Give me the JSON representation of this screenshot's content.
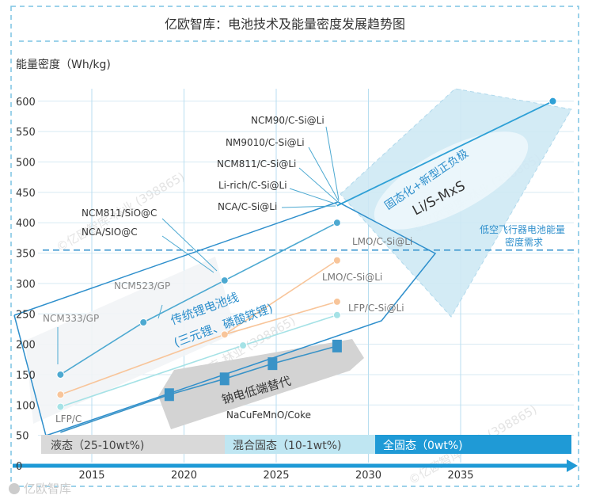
{
  "chart_data": {
    "type": "line",
    "title": "亿欧智库：电池技术及能量密度发展趋势图",
    "ylabel": "能量密度（Wh/kg)",
    "xlabel": "",
    "ylim": [
      0,
      600
    ],
    "xlim": [
      2012.5,
      2040
    ],
    "x_ticks": [
      "2015",
      "2020",
      "2025",
      "2030",
      "2035"
    ],
    "y_ticks": [
      "0",
      "50",
      "100",
      "150",
      "200",
      "250",
      "300",
      "350",
      "400",
      "450",
      "500",
      "550",
      "600"
    ],
    "grid": true,
    "series": [
      {
        "color": "#4da9d1",
        "points": [
          [
            2013.3,
            150
          ],
          [
            2017.8,
            236
          ],
          [
            2022.2,
            305
          ],
          [
            2028.3,
            400
          ]
        ]
      },
      {
        "color": "#f8c59a",
        "points": [
          [
            2013.3,
            117
          ],
          [
            2022.2,
            216
          ],
          [
            2028.3,
            338
          ]
        ]
      },
      {
        "color": "#f8c59a",
        "points": [
          [
            2022.2,
            216
          ],
          [
            2028.3,
            270
          ]
        ]
      },
      {
        "color": "#a5e2e6",
        "points": [
          [
            2013.3,
            97
          ],
          [
            2023.2,
            198
          ],
          [
            2028.3,
            248
          ]
        ]
      },
      {
        "color": "#3a93c7",
        "points": [
          [
            2013.3,
            55
          ],
          [
            2019.2,
            117
          ],
          [
            2022.2,
            143
          ],
          [
            2024.8,
            168
          ],
          [
            2028.3,
            197
          ]
        ]
      },
      {
        "color": "#2ea0d6",
        "points": [
          [
            2028.3,
            428
          ],
          [
            2040,
            600
          ]
        ]
      }
    ],
    "annotations": [
      {
        "id": "ncm333",
        "text": "NCM333/GP",
        "color": "#888888"
      },
      {
        "id": "ncm523",
        "text": "NCM523/GP",
        "color": "#888888"
      },
      {
        "id": "ncm811sio",
        "text": "NCM811/SiO@C",
        "color": "#333333"
      },
      {
        "id": "ncasio",
        "text": "NCA/SIO@C",
        "color": "#333333"
      },
      {
        "id": "ncm90",
        "text": "NCM90/C-Si@Li",
        "color": "#333333"
      },
      {
        "id": "nm9010",
        "text": "NM9010/C-Si@Li",
        "color": "#333333"
      },
      {
        "id": "ncm811c",
        "text": "NCM811/C-Si@Li",
        "color": "#333333"
      },
      {
        "id": "lirich",
        "text": "Li-rich/C-Si@Li",
        "color": "#333333"
      },
      {
        "id": "nca",
        "text": "NCA/C-Si@Li",
        "color": "#333333"
      },
      {
        "id": "lmo1",
        "text": "LMO/C-Si@Li",
        "color": "#777777"
      },
      {
        "id": "lmo2",
        "text": "LMO/C-Si@Li",
        "color": "#777777"
      },
      {
        "id": "lfpcsi",
        "text": "LFP/C-Si@Li",
        "color": "#777777"
      },
      {
        "id": "lfpc",
        "text": "LFP/C",
        "color": "#777777"
      },
      {
        "id": "nacu",
        "text": "NaCuFeMnO/Coke",
        "color": "#333333"
      },
      {
        "id": "trad1",
        "text": "传统锂电池线",
        "color": "#2e8fcc"
      },
      {
        "id": "trad2",
        "text": "(三元锂、磷酸铁锂)",
        "color": "#2e8fcc"
      },
      {
        "id": "sodium",
        "text": "钠电低端替代",
        "color": "#333333"
      },
      {
        "id": "solid",
        "text": "固态化+新型正负极",
        "color": "#2e8fcc"
      },
      {
        "id": "lis",
        "text": "Li/S-MxS",
        "color": "#333333"
      },
      {
        "id": "aero1",
        "text": "低空飞行器电池能量",
        "color": "#2e8fcc"
      },
      {
        "id": "aero2",
        "text": "密度需求",
        "color": "#2e8fcc"
      }
    ],
    "threshold_value": 355,
    "electrolyte_bars": [
      {
        "text": "液态（25-10wt%)",
        "color": "#d9d9d9",
        "text_color": "#444444"
      },
      {
        "text": "混合固态（10-1wt%)",
        "color": "#bfe6f2",
        "text_color": "#444444"
      },
      {
        "text": "全固态（0wt%)",
        "color": "#1f9ad6",
        "text_color": "#ffffff"
      }
    ]
  },
  "watermarks": [
    "©亿欧智库-林业 (398865)"
  ],
  "footer_logo": "亿欧智库"
}
